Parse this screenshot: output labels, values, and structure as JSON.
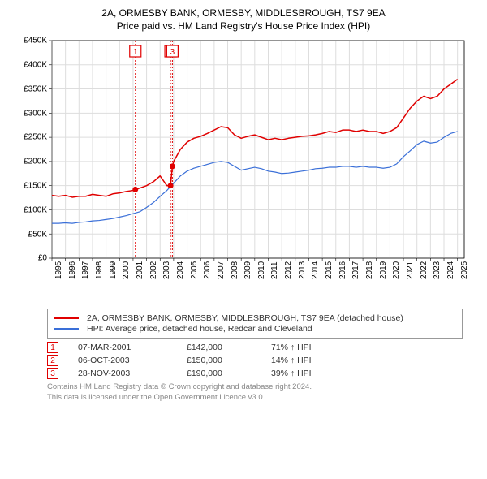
{
  "title_line1": "2A, ORMESBY BANK, ORMESBY, MIDDLESBROUGH, TS7 9EA",
  "title_line2": "Price paid vs. HM Land Registry's House Price Index (HPI)",
  "chart": {
    "type": "line",
    "background_color": "#ffffff",
    "grid_color": "#dddddd",
    "x": {
      "min": 1995,
      "max": 2025.5,
      "ticks": [
        1995,
        1996,
        1997,
        1998,
        1999,
        2000,
        2001,
        2002,
        2003,
        2004,
        2005,
        2006,
        2007,
        2008,
        2009,
        2010,
        2011,
        2012,
        2013,
        2014,
        2015,
        2016,
        2017,
        2018,
        2019,
        2020,
        2021,
        2022,
        2023,
        2024,
        2025
      ],
      "tick_fontsize": 10
    },
    "y": {
      "min": 0,
      "max": 450000,
      "step": 50000,
      "tick_labels": [
        "£0",
        "£50K",
        "£100K",
        "£150K",
        "£200K",
        "£250K",
        "£300K",
        "£350K",
        "£400K",
        "£450K"
      ],
      "tick_fontsize": 10
    },
    "series": [
      {
        "key": "property",
        "label": "2A, ORMESBY BANK, ORMESBY, MIDDLESBROUGH, TS7 9EA (detached house)",
        "color": "#e00000",
        "line_width": 1.5,
        "data": [
          [
            1995,
            130000
          ],
          [
            1995.5,
            128000
          ],
          [
            1996,
            130000
          ],
          [
            1996.5,
            126000
          ],
          [
            1997,
            128000
          ],
          [
            1997.5,
            128000
          ],
          [
            1998,
            132000
          ],
          [
            1998.5,
            130000
          ],
          [
            1999,
            128000
          ],
          [
            1999.5,
            133000
          ],
          [
            2000,
            135000
          ],
          [
            2000.5,
            138000
          ],
          [
            2001,
            140000
          ],
          [
            2001.17,
            142000
          ],
          [
            2001.5,
            145000
          ],
          [
            2002,
            150000
          ],
          [
            2002.5,
            158000
          ],
          [
            2003,
            170000
          ],
          [
            2003.5,
            150000
          ],
          [
            2003.77,
            150000
          ],
          [
            2003.91,
            190000
          ],
          [
            2004,
            200000
          ],
          [
            2004.5,
            225000
          ],
          [
            2005,
            240000
          ],
          [
            2005.5,
            248000
          ],
          [
            2006,
            252000
          ],
          [
            2006.5,
            258000
          ],
          [
            2007,
            265000
          ],
          [
            2007.5,
            272000
          ],
          [
            2008,
            270000
          ],
          [
            2008.5,
            255000
          ],
          [
            2009,
            248000
          ],
          [
            2009.5,
            252000
          ],
          [
            2010,
            255000
          ],
          [
            2010.5,
            250000
          ],
          [
            2011,
            245000
          ],
          [
            2011.5,
            248000
          ],
          [
            2012,
            245000
          ],
          [
            2012.5,
            248000
          ],
          [
            2013,
            250000
          ],
          [
            2013.5,
            252000
          ],
          [
            2014,
            253000
          ],
          [
            2014.5,
            255000
          ],
          [
            2015,
            258000
          ],
          [
            2015.5,
            262000
          ],
          [
            2016,
            260000
          ],
          [
            2016.5,
            265000
          ],
          [
            2017,
            265000
          ],
          [
            2017.5,
            262000
          ],
          [
            2018,
            265000
          ],
          [
            2018.5,
            262000
          ],
          [
            2019,
            262000
          ],
          [
            2019.5,
            258000
          ],
          [
            2020,
            262000
          ],
          [
            2020.5,
            270000
          ],
          [
            2021,
            290000
          ],
          [
            2021.5,
            310000
          ],
          [
            2022,
            325000
          ],
          [
            2022.5,
            335000
          ],
          [
            2023,
            330000
          ],
          [
            2023.5,
            335000
          ],
          [
            2024,
            350000
          ],
          [
            2024.5,
            360000
          ],
          [
            2025,
            370000
          ]
        ]
      },
      {
        "key": "hpi",
        "label": "HPI: Average price, detached house, Redcar and Cleveland",
        "color": "#3a6fd8",
        "line_width": 1.2,
        "data": [
          [
            1995,
            72000
          ],
          [
            1995.5,
            72000
          ],
          [
            1996,
            73000
          ],
          [
            1996.5,
            72000
          ],
          [
            1997,
            74000
          ],
          [
            1997.5,
            75000
          ],
          [
            1998,
            77000
          ],
          [
            1998.5,
            78000
          ],
          [
            1999,
            80000
          ],
          [
            1999.5,
            82000
          ],
          [
            2000,
            85000
          ],
          [
            2000.5,
            88000
          ],
          [
            2001,
            92000
          ],
          [
            2001.5,
            96000
          ],
          [
            2002,
            105000
          ],
          [
            2002.5,
            115000
          ],
          [
            2003,
            128000
          ],
          [
            2003.5,
            140000
          ],
          [
            2004,
            155000
          ],
          [
            2004.5,
            170000
          ],
          [
            2005,
            180000
          ],
          [
            2005.5,
            186000
          ],
          [
            2006,
            190000
          ],
          [
            2006.5,
            194000
          ],
          [
            2007,
            198000
          ],
          [
            2007.5,
            200000
          ],
          [
            2008,
            198000
          ],
          [
            2008.5,
            190000
          ],
          [
            2009,
            182000
          ],
          [
            2009.5,
            185000
          ],
          [
            2010,
            188000
          ],
          [
            2010.5,
            185000
          ],
          [
            2011,
            180000
          ],
          [
            2011.5,
            178000
          ],
          [
            2012,
            175000
          ],
          [
            2012.5,
            176000
          ],
          [
            2013,
            178000
          ],
          [
            2013.5,
            180000
          ],
          [
            2014,
            182000
          ],
          [
            2014.5,
            185000
          ],
          [
            2015,
            186000
          ],
          [
            2015.5,
            188000
          ],
          [
            2016,
            188000
          ],
          [
            2016.5,
            190000
          ],
          [
            2017,
            190000
          ],
          [
            2017.5,
            188000
          ],
          [
            2018,
            190000
          ],
          [
            2018.5,
            188000
          ],
          [
            2019,
            188000
          ],
          [
            2019.5,
            186000
          ],
          [
            2020,
            188000
          ],
          [
            2020.5,
            195000
          ],
          [
            2021,
            210000
          ],
          [
            2021.5,
            222000
          ],
          [
            2022,
            235000
          ],
          [
            2022.5,
            242000
          ],
          [
            2023,
            238000
          ],
          [
            2023.5,
            240000
          ],
          [
            2024,
            250000
          ],
          [
            2024.5,
            258000
          ],
          [
            2025,
            262000
          ]
        ]
      }
    ],
    "sale_markers": [
      {
        "n": "1",
        "x": 2001.17,
        "y": 142000,
        "line_color": "#e00000",
        "dash": "2,2"
      },
      {
        "n": "2",
        "x": 2003.77,
        "y": 150000,
        "line_color": "#e00000",
        "dash": "2,2"
      },
      {
        "n": "3",
        "x": 2003.91,
        "y": 190000,
        "line_color": "#e00000",
        "dash": "2,2"
      }
    ],
    "sale_marker_box": {
      "size": 14,
      "border_color": "#e00000",
      "bg": "#ffffff",
      "font_size": 10
    }
  },
  "legend": {
    "items": [
      {
        "series_key": "property"
      },
      {
        "series_key": "hpi"
      }
    ]
  },
  "sales": [
    {
      "n": "1",
      "date": "07-MAR-2001",
      "price": "£142,000",
      "hpi_delta": "71% ↑ HPI"
    },
    {
      "n": "2",
      "date": "06-OCT-2003",
      "price": "£150,000",
      "hpi_delta": "14% ↑ HPI"
    },
    {
      "n": "3",
      "date": "28-NOV-2003",
      "price": "£190,000",
      "hpi_delta": "39% ↑ HPI"
    }
  ],
  "footer_line1": "Contains HM Land Registry data © Crown copyright and database right 2024.",
  "footer_line2": "This data is licensed under the Open Government Licence v3.0."
}
